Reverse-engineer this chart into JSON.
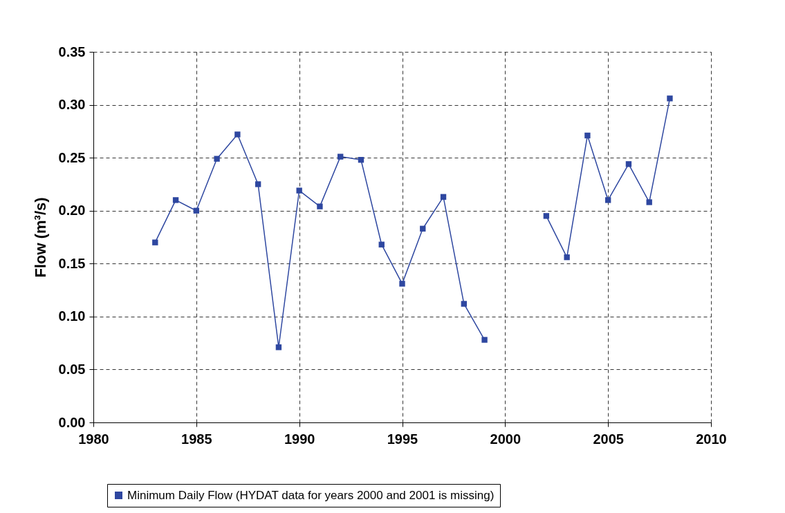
{
  "chart_data": {
    "type": "line",
    "ylabel": "Flow (m³/s)",
    "x": [
      1983,
      1984,
      1985,
      1986,
      1987,
      1988,
      1989,
      1990,
      1991,
      1992,
      1993,
      1994,
      1995,
      1996,
      1997,
      1998,
      1999,
      2000,
      2001,
      2002,
      2003,
      2004,
      2005,
      2006,
      2007,
      2008
    ],
    "series": [
      {
        "name": "Minimum Daily Flow (HYDAT data for years 2000 and 2001 is missing)",
        "color": "#2e47a0",
        "values": [
          0.17,
          0.21,
          0.2,
          0.249,
          0.272,
          0.225,
          0.071,
          0.219,
          0.204,
          0.251,
          0.248,
          0.168,
          0.131,
          0.183,
          0.213,
          0.112,
          0.078,
          null,
          null,
          0.195,
          0.156,
          0.271,
          0.21,
          0.244,
          0.208,
          0.306
        ]
      }
    ],
    "xlim": [
      1980,
      2010
    ],
    "xticks": [
      1980,
      1985,
      1990,
      1995,
      2000,
      2005,
      2010
    ],
    "ylim": [
      0,
      0.35
    ],
    "yticks": [
      {
        "value": 0,
        "label": "0.00"
      },
      {
        "value": 0.05,
        "label": "0.05"
      },
      {
        "value": 0.1,
        "label": "0.10"
      },
      {
        "value": 0.15,
        "label": "0.15"
      },
      {
        "value": 0.2,
        "label": "0.20"
      },
      {
        "value": 0.25,
        "label": "0.25"
      },
      {
        "value": 0.3,
        "label": "0.30"
      },
      {
        "value": 0.35,
        "label": "0.35"
      }
    ],
    "grid": true,
    "legend": "bottom",
    "marker": "square",
    "line_style": "solid"
  }
}
